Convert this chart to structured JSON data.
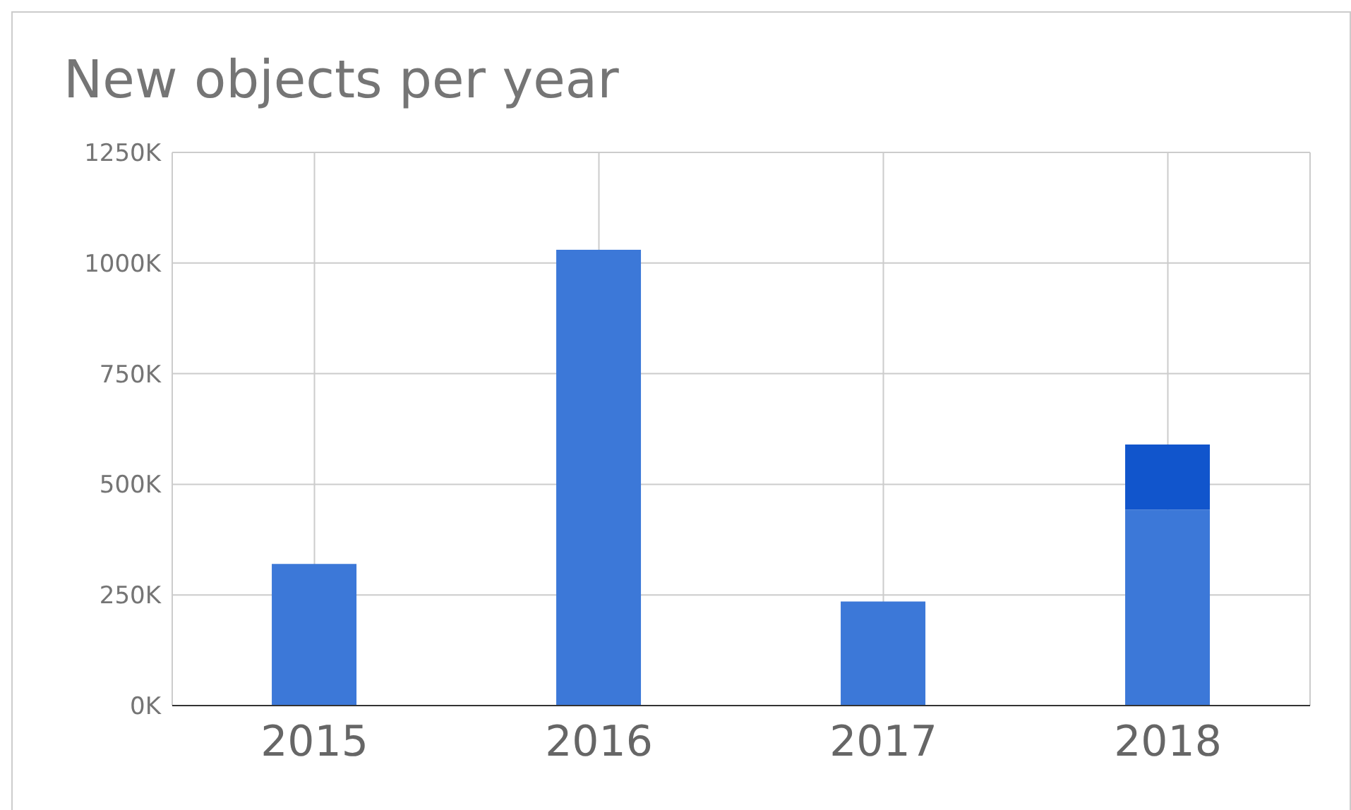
{
  "chart_data": {
    "type": "bar",
    "title": "New objects per year",
    "categories": [
      "2015",
      "2016",
      "2017",
      "2018"
    ],
    "stacked": true,
    "series": [
      {
        "color": "#3c78d8",
        "values": [
          320000,
          1030000,
          235000,
          443000
        ]
      },
      {
        "color": "#1155cc",
        "values": [
          null,
          null,
          null,
          147000
        ]
      }
    ],
    "ylim": [
      0,
      1250000
    ],
    "yticks": [
      {
        "value": 0,
        "label": "0K"
      },
      {
        "value": 250000,
        "label": "250K"
      },
      {
        "value": 500000,
        "label": "500K"
      },
      {
        "value": 750000,
        "label": "750K"
      },
      {
        "value": 1000000,
        "label": "1000K"
      },
      {
        "value": 1250000,
        "label": "1250K"
      }
    ],
    "grid": true,
    "legend": false
  }
}
